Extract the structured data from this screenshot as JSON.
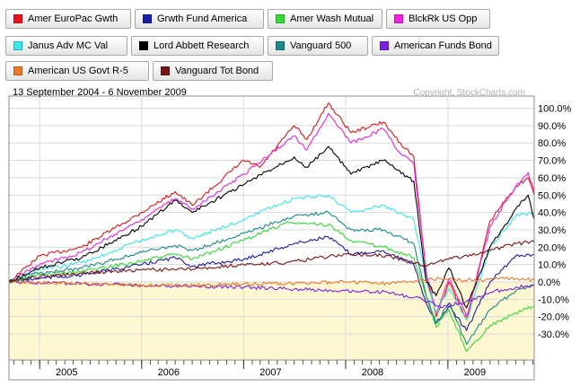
{
  "legend": {
    "items": [
      {
        "label": "Amer EuroPac Gwth",
        "color": "#e8121b"
      },
      {
        "label": "Grwth Fund America",
        "color": "#1c1ca8"
      },
      {
        "label": "Amer Wash Mutual",
        "color": "#33dd33"
      },
      {
        "label": "BlckRk US Opp",
        "color": "#f020e0"
      },
      {
        "label": "Janus Adv MC Val",
        "color": "#38e8ea"
      },
      {
        "label": "Lord Abbett Research",
        "color": "#000000"
      },
      {
        "label": "Vanguard 500",
        "color": "#1a8a8a"
      },
      {
        "label": "American Funds Bond",
        "color": "#7d1fe0"
      },
      {
        "label": "American US Govt R-5",
        "color": "#f07828"
      },
      {
        "label": "Vanguard Tot Bond",
        "color": "#7a1414"
      }
    ]
  },
  "header": {
    "date_range": "13 September 2004 - 6 November 2009",
    "copyright": "Copyright, StockCharts.com"
  },
  "chart_data": {
    "type": "line",
    "title": "",
    "xlabel": "",
    "ylabel": "",
    "ylim": [
      -45,
      107
    ],
    "y_ticks": [
      100,
      90,
      80,
      70,
      60,
      50,
      40,
      30,
      20,
      10,
      0,
      -10,
      -20,
      -30
    ],
    "y_tick_labels": [
      "100.0%",
      "90.0%",
      "80.0%",
      "70.0%",
      "60.0%",
      "50.0%",
      "40.0%",
      "30.0%",
      "20.0%",
      "10.0%",
      "0.0%",
      "-10.0%",
      "-20.0%",
      "-30.0%"
    ],
    "x_range": [
      "2004-09-13",
      "2009-11-06"
    ],
    "x_ticks": [
      "2005-01-01",
      "2006-01-01",
      "2007-01-01",
      "2008-01-01",
      "2009-01-01"
    ],
    "x_tick_labels": [
      "2005",
      "2006",
      "2007",
      "2008",
      "2009"
    ],
    "background_top": "#ffffff",
    "background_bottom": "#fdf8d2",
    "grid": true,
    "series": [
      {
        "name": "Amer EuroPac Gwth",
        "color": "#e8121b",
        "points": [
          [
            "2004-09-13",
            0
          ],
          [
            "2005-01-01",
            15
          ],
          [
            "2005-06-01",
            20
          ],
          [
            "2006-01-01",
            40
          ],
          [
            "2006-05-01",
            52
          ],
          [
            "2006-07-01",
            44
          ],
          [
            "2007-01-01",
            70
          ],
          [
            "2007-03-01",
            66
          ],
          [
            "2007-07-01",
            90
          ],
          [
            "2007-08-15",
            82
          ],
          [
            "2007-10-31",
            103
          ],
          [
            "2008-01-20",
            86
          ],
          [
            "2008-05-15",
            92
          ],
          [
            "2008-07-15",
            80
          ],
          [
            "2008-09-01",
            72
          ],
          [
            "2008-10-15",
            5
          ],
          [
            "2008-11-20",
            -20
          ],
          [
            "2009-01-05",
            0
          ],
          [
            "2009-03-09",
            -22
          ],
          [
            "2009-06-01",
            35
          ],
          [
            "2009-09-01",
            55
          ],
          [
            "2009-10-15",
            60
          ],
          [
            "2009-11-06",
            50
          ]
        ]
      },
      {
        "name": "Grwth Fund America",
        "color": "#1c1ca8",
        "points": [
          [
            "2004-09-13",
            0
          ],
          [
            "2005-01-01",
            2
          ],
          [
            "2005-06-01",
            4
          ],
          [
            "2006-01-01",
            10
          ],
          [
            "2006-05-01",
            14
          ],
          [
            "2006-07-01",
            9
          ],
          [
            "2007-01-01",
            13
          ],
          [
            "2007-07-01",
            22
          ],
          [
            "2007-10-31",
            26
          ],
          [
            "2008-01-20",
            16
          ],
          [
            "2008-05-15",
            18
          ],
          [
            "2008-09-01",
            10
          ],
          [
            "2008-10-15",
            -12
          ],
          [
            "2008-11-20",
            -24
          ],
          [
            "2009-01-05",
            -14
          ],
          [
            "2009-03-09",
            -28
          ],
          [
            "2009-06-01",
            0
          ],
          [
            "2009-09-01",
            15
          ],
          [
            "2009-11-06",
            16
          ]
        ]
      },
      {
        "name": "Amer Wash Mutual",
        "color": "#33dd33",
        "points": [
          [
            "2004-09-13",
            0
          ],
          [
            "2005-01-01",
            4
          ],
          [
            "2005-06-01",
            6
          ],
          [
            "2006-01-01",
            12
          ],
          [
            "2006-05-01",
            16
          ],
          [
            "2006-07-01",
            13
          ],
          [
            "2007-01-01",
            24
          ],
          [
            "2007-06-01",
            34
          ],
          [
            "2007-10-31",
            33
          ],
          [
            "2008-01-20",
            24
          ],
          [
            "2008-05-15",
            20
          ],
          [
            "2008-09-01",
            14
          ],
          [
            "2008-10-15",
            -8
          ],
          [
            "2008-11-20",
            -26
          ],
          [
            "2009-01-05",
            -16
          ],
          [
            "2009-03-09",
            -40
          ],
          [
            "2009-06-01",
            -25
          ],
          [
            "2009-09-01",
            -18
          ],
          [
            "2009-11-06",
            -14
          ]
        ]
      },
      {
        "name": "BlckRk US Opp",
        "color": "#f020e0",
        "points": [
          [
            "2004-09-13",
            0
          ],
          [
            "2005-01-01",
            10
          ],
          [
            "2005-06-01",
            17
          ],
          [
            "2006-01-01",
            36
          ],
          [
            "2006-05-01",
            48
          ],
          [
            "2006-07-01",
            42
          ],
          [
            "2007-01-01",
            62
          ],
          [
            "2007-07-01",
            84
          ],
          [
            "2007-08-15",
            76
          ],
          [
            "2007-10-31",
            97
          ],
          [
            "2008-01-20",
            80
          ],
          [
            "2008-05-15",
            88
          ],
          [
            "2008-07-15",
            74
          ],
          [
            "2008-09-01",
            68
          ],
          [
            "2008-10-15",
            6
          ],
          [
            "2008-11-20",
            -18
          ],
          [
            "2009-01-05",
            2
          ],
          [
            "2009-03-09",
            -20
          ],
          [
            "2009-06-01",
            32
          ],
          [
            "2009-09-01",
            55
          ],
          [
            "2009-10-15",
            63
          ],
          [
            "2009-11-06",
            52
          ]
        ]
      },
      {
        "name": "Janus Adv MC Val",
        "color": "#38e8ea",
        "points": [
          [
            "2004-09-13",
            0
          ],
          [
            "2005-01-01",
            7
          ],
          [
            "2005-06-01",
            11
          ],
          [
            "2006-01-01",
            24
          ],
          [
            "2006-05-01",
            30
          ],
          [
            "2006-07-01",
            25
          ],
          [
            "2007-01-01",
            36
          ],
          [
            "2007-07-01",
            48
          ],
          [
            "2007-10-31",
            50
          ],
          [
            "2008-01-20",
            40
          ],
          [
            "2008-05-15",
            44
          ],
          [
            "2008-09-01",
            36
          ],
          [
            "2008-10-15",
            2
          ],
          [
            "2008-11-20",
            -18
          ],
          [
            "2009-01-05",
            -4
          ],
          [
            "2009-03-09",
            -22
          ],
          [
            "2009-06-01",
            20
          ],
          [
            "2009-09-01",
            38
          ],
          [
            "2009-11-06",
            40
          ]
        ]
      },
      {
        "name": "Lord Abbett Research",
        "color": "#000000",
        "points": [
          [
            "2004-09-13",
            0
          ],
          [
            "2005-01-01",
            8
          ],
          [
            "2005-06-01",
            14
          ],
          [
            "2006-01-01",
            32
          ],
          [
            "2006-05-01",
            47
          ],
          [
            "2006-07-01",
            40
          ],
          [
            "2007-01-01",
            56
          ],
          [
            "2007-07-01",
            72
          ],
          [
            "2007-08-15",
            66
          ],
          [
            "2007-10-31",
            78
          ],
          [
            "2008-01-20",
            62
          ],
          [
            "2008-05-15",
            70
          ],
          [
            "2008-09-01",
            58
          ],
          [
            "2008-10-15",
            0
          ],
          [
            "2008-11-20",
            -8
          ],
          [
            "2009-01-05",
            8
          ],
          [
            "2009-03-09",
            -15
          ],
          [
            "2009-06-01",
            20
          ],
          [
            "2009-09-01",
            42
          ],
          [
            "2009-10-15",
            50
          ],
          [
            "2009-11-06",
            36
          ]
        ]
      },
      {
        "name": "Vanguard 500",
        "color": "#1a8a8a",
        "points": [
          [
            "2004-09-13",
            0
          ],
          [
            "2005-01-01",
            5
          ],
          [
            "2005-06-01",
            8
          ],
          [
            "2006-01-01",
            17
          ],
          [
            "2006-05-01",
            21
          ],
          [
            "2006-07-01",
            18
          ],
          [
            "2007-01-01",
            28
          ],
          [
            "2007-07-01",
            38
          ],
          [
            "2007-10-31",
            40
          ],
          [
            "2008-01-20",
            30
          ],
          [
            "2008-05-15",
            30
          ],
          [
            "2008-09-01",
            22
          ],
          [
            "2008-10-15",
            -8
          ],
          [
            "2008-11-20",
            -24
          ],
          [
            "2009-01-05",
            -12
          ],
          [
            "2009-03-09",
            -36
          ],
          [
            "2009-06-01",
            -16
          ],
          [
            "2009-09-01",
            -5
          ],
          [
            "2009-11-06",
            -2
          ]
        ]
      },
      {
        "name": "American Funds Bond",
        "color": "#7d1fe0",
        "points": [
          [
            "2004-09-13",
            0
          ],
          [
            "2005-06-01",
            -1
          ],
          [
            "2006-01-01",
            -2
          ],
          [
            "2007-01-01",
            -3
          ],
          [
            "2007-06-01",
            -4
          ],
          [
            "2008-01-01",
            -5
          ],
          [
            "2008-06-01",
            -6
          ],
          [
            "2008-10-01",
            -10
          ],
          [
            "2008-12-01",
            -14
          ],
          [
            "2009-03-01",
            -12
          ],
          [
            "2009-06-01",
            -6
          ],
          [
            "2009-09-01",
            -3
          ],
          [
            "2009-11-06",
            -2
          ]
        ]
      },
      {
        "name": "American US Govt R-5",
        "color": "#f07828",
        "points": [
          [
            "2004-09-13",
            0
          ],
          [
            "2005-06-01",
            -1
          ],
          [
            "2006-01-01",
            -2
          ],
          [
            "2006-06-01",
            -2
          ],
          [
            "2007-01-01",
            -1
          ],
          [
            "2007-06-01",
            -1
          ],
          [
            "2008-01-01",
            0
          ],
          [
            "2008-06-01",
            -1
          ],
          [
            "2008-12-01",
            2
          ],
          [
            "2009-03-01",
            1
          ],
          [
            "2009-09-01",
            2
          ],
          [
            "2009-11-06",
            1
          ]
        ]
      },
      {
        "name": "Vanguard Tot Bond",
        "color": "#7a1414",
        "points": [
          [
            "2004-09-13",
            0
          ],
          [
            "2005-01-01",
            3
          ],
          [
            "2005-06-01",
            5
          ],
          [
            "2006-01-01",
            7
          ],
          [
            "2006-06-01",
            7
          ],
          [
            "2007-01-01",
            10
          ],
          [
            "2007-06-01",
            11
          ],
          [
            "2008-01-01",
            16
          ],
          [
            "2008-06-01",
            15
          ],
          [
            "2008-10-15",
            9
          ],
          [
            "2008-12-01",
            12
          ],
          [
            "2009-03-01",
            15
          ],
          [
            "2009-06-01",
            18
          ],
          [
            "2009-09-01",
            22
          ],
          [
            "2009-11-06",
            23
          ]
        ]
      }
    ]
  }
}
